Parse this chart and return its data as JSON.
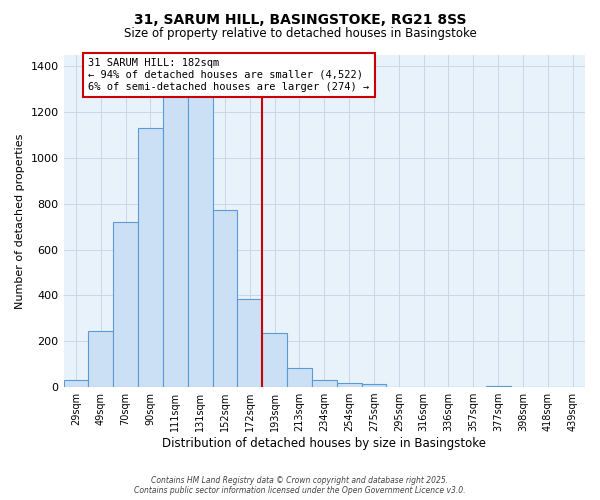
{
  "title1": "31, SARUM HILL, BASINGSTOKE, RG21 8SS",
  "title2": "Size of property relative to detached houses in Basingstoke",
  "xlabel": "Distribution of detached houses by size in Basingstoke",
  "ylabel": "Number of detached properties",
  "bin_labels": [
    "29sqm",
    "49sqm",
    "70sqm",
    "90sqm",
    "111sqm",
    "131sqm",
    "152sqm",
    "172sqm",
    "193sqm",
    "213sqm",
    "234sqm",
    "254sqm",
    "275sqm",
    "295sqm",
    "316sqm",
    "336sqm",
    "357sqm",
    "377sqm",
    "398sqm",
    "418sqm",
    "439sqm"
  ],
  "bin_values": [
    30,
    245,
    720,
    1130,
    1340,
    1340,
    775,
    385,
    235,
    85,
    30,
    18,
    15,
    0,
    0,
    0,
    0,
    5,
    0,
    0,
    0
  ],
  "bar_color": "#cce0f5",
  "bar_edge_color": "#5b9bd5",
  "grid_color": "#c8d8e8",
  "background_color": "#e8f2fb",
  "vline_color": "#cc0000",
  "annotation_line1": "31 SARUM HILL: 182sqm",
  "annotation_line2": "← 94% of detached houses are smaller (4,522)",
  "annotation_line3": "6% of semi-detached houses are larger (274) →",
  "annotation_box_edge": "#cc0000",
  "ylim": [
    0,
    1450
  ],
  "yticks": [
    0,
    200,
    400,
    600,
    800,
    1000,
    1200,
    1400
  ],
  "vline_idx": 7,
  "footer1": "Contains HM Land Registry data © Crown copyright and database right 2025.",
  "footer2": "Contains public sector information licensed under the Open Government Licence v3.0."
}
